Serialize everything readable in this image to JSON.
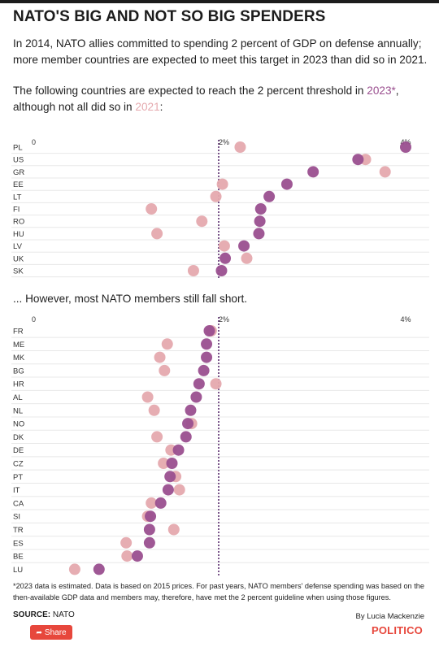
{
  "header": {
    "title": "NATO'S BIG AND NOT SO BIG SPENDERS",
    "intro": "In 2014, NATO allies committed to spending 2 percent of GDP on defense annually; more member countries are expected to meet this target in 2023 than did so in 2021.",
    "lead_prefix": "The following countries are expected to reach the 2 percent threshold in ",
    "lead_year_2023": "2023*",
    "lead_middle": ",",
    "lead_line2_prefix": "although not all did so in ",
    "lead_year_2021": "2021",
    "lead_suffix": ":"
  },
  "colors": {
    "y2023": "#9a4f8f",
    "y2021": "#e5a9ae",
    "threshold": "#5a2d6e"
  },
  "second_heading": "... However, most NATO members still fall short.",
  "chart_data": [
    {
      "type": "dot",
      "xlim": [
        0,
        4
      ],
      "x_ticks": [
        {
          "value": 0,
          "label": "0"
        },
        {
          "value": 2,
          "label": "2%"
        },
        {
          "value": 4,
          "label": "4%"
        }
      ],
      "threshold": 2,
      "series_names": [
        "2023",
        "2021"
      ],
      "categories": [
        "PL",
        "US",
        "GR",
        "EE",
        "LT",
        "FI",
        "RO",
        "HU",
        "LV",
        "UK",
        "SK"
      ],
      "series": [
        {
          "name": "2023",
          "values": [
            4.0,
            3.49,
            3.01,
            2.73,
            2.54,
            2.45,
            2.44,
            2.43,
            2.27,
            2.07,
            2.03
          ]
        },
        {
          "name": "2021",
          "values": [
            2.23,
            3.57,
            3.78,
            2.04,
            1.97,
            1.28,
            1.82,
            1.34,
            2.06,
            2.3,
            1.73
          ]
        }
      ]
    },
    {
      "type": "dot",
      "xlim": [
        0,
        4
      ],
      "x_ticks": [
        {
          "value": 0,
          "label": "0"
        },
        {
          "value": 2,
          "label": "2%"
        },
        {
          "value": 4,
          "label": "4%"
        }
      ],
      "threshold": 2,
      "series_names": [
        "2023",
        "2021"
      ],
      "categories": [
        "FR",
        "ME",
        "MK",
        "BG",
        "HR",
        "AL",
        "NL",
        "NO",
        "DK",
        "DE",
        "CZ",
        "PT",
        "IT",
        "CA",
        "SI",
        "TR",
        "ES",
        "BE",
        "LU"
      ],
      "series": [
        {
          "name": "2023",
          "values": [
            1.9,
            1.87,
            1.87,
            1.84,
            1.79,
            1.76,
            1.7,
            1.67,
            1.65,
            1.57,
            1.5,
            1.48,
            1.46,
            1.38,
            1.27,
            1.26,
            1.26,
            1.13,
            0.72
          ]
        },
        {
          "name": "2021",
          "values": [
            1.92,
            1.45,
            1.37,
            1.42,
            1.97,
            1.24,
            1.31,
            1.71,
            1.34,
            1.49,
            1.41,
            1.54,
            1.58,
            1.28,
            1.24,
            1.52,
            1.01,
            1.02,
            0.46
          ]
        }
      ]
    }
  ],
  "footnote": "*2023 data is estimated. Data is based on 2015 prices. For past years, NATO members' defense spending was based on the then-available GDP data and members may, therefore, have met the 2 percent guideline when using those figures.",
  "source_label": "SOURCE:",
  "source_value": " NATO",
  "byline": "By Lucia Mackenzie",
  "share_label": "Share",
  "share_icon": "share-arrow-icon",
  "logo_text": "POLITICO"
}
